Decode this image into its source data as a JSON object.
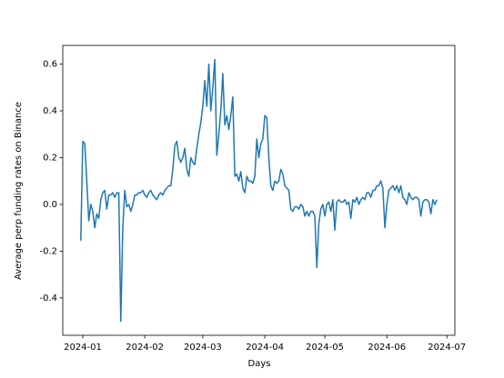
{
  "chart_data": {
    "type": "line",
    "xlabel": "Days",
    "ylabel": "Average perp funding rates on Binance",
    "x": [
      "2023-12-31",
      "2024-01-01",
      "2024-01-02",
      "2024-01-03",
      "2024-01-04",
      "2024-01-05",
      "2024-01-06",
      "2024-01-07",
      "2024-01-08",
      "2024-01-09",
      "2024-01-10",
      "2024-01-11",
      "2024-01-12",
      "2024-01-13",
      "2024-01-14",
      "2024-01-15",
      "2024-01-16",
      "2024-01-17",
      "2024-01-18",
      "2024-01-19",
      "2024-01-20",
      "2024-01-21",
      "2024-01-22",
      "2024-01-23",
      "2024-01-24",
      "2024-01-25",
      "2024-01-26",
      "2024-01-27",
      "2024-01-28",
      "2024-01-29",
      "2024-01-30",
      "2024-01-31",
      "2024-02-01",
      "2024-02-02",
      "2024-02-03",
      "2024-02-04",
      "2024-02-05",
      "2024-02-06",
      "2024-02-07",
      "2024-02-08",
      "2024-02-09",
      "2024-02-10",
      "2024-02-11",
      "2024-02-12",
      "2024-02-13",
      "2024-02-14",
      "2024-02-15",
      "2024-02-16",
      "2024-02-17",
      "2024-02-18",
      "2024-02-19",
      "2024-02-20",
      "2024-02-21",
      "2024-02-22",
      "2024-02-23",
      "2024-02-24",
      "2024-02-25",
      "2024-02-26",
      "2024-02-27",
      "2024-02-28",
      "2024-02-29",
      "2024-03-01",
      "2024-03-02",
      "2024-03-03",
      "2024-03-04",
      "2024-03-05",
      "2024-03-06",
      "2024-03-07",
      "2024-03-08",
      "2024-03-09",
      "2024-03-10",
      "2024-03-11",
      "2024-03-12",
      "2024-03-13",
      "2024-03-14",
      "2024-03-15",
      "2024-03-16",
      "2024-03-17",
      "2024-03-18",
      "2024-03-19",
      "2024-03-20",
      "2024-03-21",
      "2024-03-22",
      "2024-03-23",
      "2024-03-24",
      "2024-03-25",
      "2024-03-26",
      "2024-03-27",
      "2024-03-28",
      "2024-03-29",
      "2024-03-30",
      "2024-03-31",
      "2024-04-01",
      "2024-04-02",
      "2024-04-03",
      "2024-04-04",
      "2024-04-05",
      "2024-04-06",
      "2024-04-07",
      "2024-04-08",
      "2024-04-09",
      "2024-04-10",
      "2024-04-11",
      "2024-04-12",
      "2024-04-13",
      "2024-04-14",
      "2024-04-15",
      "2024-04-16",
      "2024-04-17",
      "2024-04-18",
      "2024-04-19",
      "2024-04-20",
      "2024-04-21",
      "2024-04-22",
      "2024-04-23",
      "2024-04-24",
      "2024-04-25",
      "2024-04-26",
      "2024-04-27",
      "2024-04-28",
      "2024-04-29",
      "2024-04-30",
      "2024-05-01",
      "2024-05-02",
      "2024-05-03",
      "2024-05-04",
      "2024-05-05",
      "2024-05-06",
      "2024-05-07",
      "2024-05-08",
      "2024-05-09",
      "2024-05-10",
      "2024-05-11",
      "2024-05-12",
      "2024-05-13",
      "2024-05-14",
      "2024-05-15",
      "2024-05-16",
      "2024-05-17",
      "2024-05-18",
      "2024-05-19",
      "2024-05-20",
      "2024-05-21",
      "2024-05-22",
      "2024-05-23",
      "2024-05-24",
      "2024-05-25",
      "2024-05-26",
      "2024-05-27",
      "2024-05-28",
      "2024-05-29",
      "2024-05-30",
      "2024-05-31",
      "2024-06-01",
      "2024-06-02",
      "2024-06-03",
      "2024-06-04",
      "2024-06-05",
      "2024-06-06",
      "2024-06-07",
      "2024-06-08",
      "2024-06-09",
      "2024-06-10",
      "2024-06-11",
      "2024-06-12",
      "2024-06-13",
      "2024-06-14",
      "2024-06-15",
      "2024-06-16",
      "2024-06-17",
      "2024-06-18",
      "2024-06-19",
      "2024-06-20",
      "2024-06-21",
      "2024-06-22",
      "2024-06-23",
      "2024-06-24",
      "2024-06-25",
      "2024-06-26"
    ],
    "series": [
      {
        "color": "#1f77b4",
        "values": [
          -0.155,
          0.27,
          0.26,
          0.1,
          -0.07,
          0.0,
          -0.03,
          -0.1,
          -0.04,
          -0.06,
          0.02,
          0.05,
          0.06,
          -0.02,
          0.04,
          0.04,
          0.05,
          0.03,
          0.05,
          0.05,
          -0.5,
          -0.1,
          0.06,
          -0.01,
          0.0,
          -0.03,
          0.0,
          0.04,
          0.04,
          0.05,
          0.05,
          0.06,
          0.04,
          0.03,
          0.05,
          0.06,
          0.04,
          0.03,
          0.02,
          0.04,
          0.05,
          0.04,
          0.06,
          0.07,
          0.08,
          0.08,
          0.15,
          0.25,
          0.27,
          0.2,
          0.18,
          0.2,
          0.24,
          0.15,
          0.12,
          0.2,
          0.18,
          0.17,
          0.24,
          0.3,
          0.35,
          0.42,
          0.53,
          0.42,
          0.6,
          0.4,
          0.5,
          0.62,
          0.21,
          0.3,
          0.4,
          0.56,
          0.34,
          0.38,
          0.32,
          0.38,
          0.46,
          0.12,
          0.13,
          0.1,
          0.14,
          0.07,
          0.05,
          0.12,
          0.1,
          0.1,
          0.09,
          0.12,
          0.28,
          0.2,
          0.26,
          0.28,
          0.38,
          0.37,
          0.2,
          0.08,
          0.06,
          0.1,
          0.09,
          0.1,
          0.15,
          0.13,
          0.08,
          0.07,
          0.06,
          -0.02,
          -0.03,
          -0.01,
          -0.01,
          -0.02,
          0.0,
          -0.01,
          -0.05,
          -0.03,
          -0.05,
          -0.03,
          -0.03,
          -0.05,
          -0.27,
          -0.08,
          -0.02,
          0.0,
          -0.05,
          0.0,
          0.01,
          -0.03,
          0.02,
          -0.11,
          0.01,
          0.02,
          0.01,
          0.01,
          0.02,
          0.0,
          0.01,
          -0.06,
          0.02,
          0.01,
          0.03,
          0.0,
          0.02,
          0.03,
          0.02,
          0.05,
          0.05,
          0.03,
          0.06,
          0.06,
          0.08,
          0.08,
          0.1,
          0.07,
          -0.1,
          0.0,
          0.06,
          0.07,
          0.08,
          0.06,
          0.08,
          0.05,
          0.08,
          0.03,
          0.02,
          0.0,
          0.05,
          0.03,
          0.02,
          0.03,
          0.03,
          0.02,
          -0.05,
          0.01,
          0.02,
          0.02,
          0.01,
          -0.04,
          0.02,
          0.0,
          0.02
        ]
      }
    ],
    "xlim": [
      "2023-12-22",
      "2024-07-05"
    ],
    "xticks": [
      {
        "value": "2024-01-01",
        "label": "2024-01"
      },
      {
        "value": "2024-02-01",
        "label": "2024-02"
      },
      {
        "value": "2024-03-01",
        "label": "2024-03"
      },
      {
        "value": "2024-04-01",
        "label": "2024-04"
      },
      {
        "value": "2024-05-01",
        "label": "2024-05"
      },
      {
        "value": "2024-06-01",
        "label": "2024-06"
      },
      {
        "value": "2024-07-01",
        "label": "2024-07"
      }
    ],
    "ylim": [
      -0.56,
      0.68
    ],
    "yticks": [
      -0.4,
      -0.2,
      {
        "value": 0,
        "label": "0.0"
      },
      0.2,
      0.4,
      0.6
    ],
    "grid": false
  }
}
